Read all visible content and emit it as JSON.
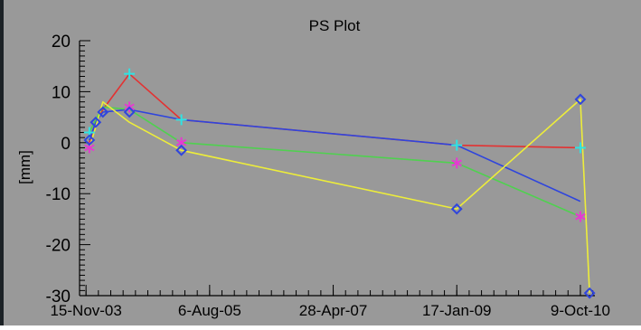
{
  "chart_data": {
    "type": "line",
    "title": "PS Plot",
    "xlabel": "",
    "ylabel": "[mm]",
    "ylim": [
      -30,
      20
    ],
    "xlim": [
      "2003-10-13",
      "2010-12-22"
    ],
    "yticks": [
      -30,
      -20,
      -10,
      0,
      10,
      20
    ],
    "xticks": [
      {
        "date": "2003-11-15",
        "label": "15-Nov-03"
      },
      {
        "date": "2005-08-06",
        "label": "6-Aug-05"
      },
      {
        "date": "2007-04-28",
        "label": "28-Apr-07"
      },
      {
        "date": "2009-01-17",
        "label": "17-Jan-09"
      },
      {
        "date": "2010-10-09",
        "label": "9-Oct-10"
      }
    ],
    "grid": false,
    "legend": "none",
    "background": "#999999",
    "series": [
      {
        "color": "#e33232",
        "marker": "none",
        "points": [
          {
            "x": "2003-12-02",
            "y": 0.0
          },
          {
            "x": "2004-01-03",
            "y": 4.0
          },
          {
            "x": "2004-02-09",
            "y": 6.5
          },
          {
            "x": "2004-06-23",
            "y": 13.5
          },
          {
            "x": "2005-03-15",
            "y": 4.5
          },
          {
            "x": "2009-01-17",
            "y": -0.5
          },
          {
            "x": "2010-10-09",
            "y": -1.0
          }
        ]
      },
      {
        "color": "#2f45dd",
        "marker": "diamond",
        "points": [
          {
            "x": "2003-12-02",
            "y": 0.5
          },
          {
            "x": "2004-01-03",
            "y": 4.0
          },
          {
            "x": "2004-02-09",
            "y": 6.0
          },
          {
            "x": "2004-06-23",
            "y": 6.5
          },
          {
            "x": "2005-03-15",
            "y": 4.5
          },
          {
            "x": "2009-01-17",
            "y": -0.5
          },
          {
            "x": "2010-10-09",
            "y": -11.5
          }
        ]
      },
      {
        "color": "#4fd14f",
        "marker": "none",
        "points": [
          {
            "x": "2003-12-02",
            "y": 2.0
          },
          {
            "x": "2004-01-03",
            "y": 4.5
          },
          {
            "x": "2004-02-09",
            "y": 7.0
          },
          {
            "x": "2004-06-23",
            "y": 6.5
          },
          {
            "x": "2005-03-15",
            "y": 0.0
          },
          {
            "x": "2009-01-17",
            "y": -4.0
          },
          {
            "x": "2010-10-09",
            "y": -14.5
          }
        ]
      },
      {
        "color": "#eded3a",
        "marker": "none",
        "points": [
          {
            "x": "2003-12-02",
            "y": -1.0
          },
          {
            "x": "2004-01-03",
            "y": 3.0
          },
          {
            "x": "2004-02-09",
            "y": 8.0
          },
          {
            "x": "2004-06-23",
            "y": 4.0
          },
          {
            "x": "2005-03-15",
            "y": -1.5
          },
          {
            "x": "2009-01-17",
            "y": -13.0
          },
          {
            "x": "2010-10-09",
            "y": 8.5
          },
          {
            "x": "2010-11-25",
            "y": -29.5
          }
        ]
      }
    ],
    "marker_points": [
      {
        "x": "2004-06-23",
        "y": 13.5,
        "marker": "plus",
        "color": "#2fe3e3"
      },
      {
        "x": "2005-03-15",
        "y": 4.5,
        "marker": "plus",
        "color": "#2fe3e3"
      },
      {
        "x": "2009-01-17",
        "y": -0.5,
        "marker": "plus",
        "color": "#2fe3e3"
      },
      {
        "x": "2010-10-09",
        "y": -1.0,
        "marker": "plus",
        "color": "#2fe3e3"
      },
      {
        "x": "2003-12-02",
        "y": 2.0,
        "marker": "plus",
        "color": "#2fe3e3"
      },
      {
        "x": "2004-06-23",
        "y": 7.0,
        "marker": "star",
        "color": "#e63ad1"
      },
      {
        "x": "2005-03-15",
        "y": 0.0,
        "marker": "star",
        "color": "#e63ad1"
      },
      {
        "x": "2009-01-17",
        "y": -4.0,
        "marker": "star",
        "color": "#e63ad1"
      },
      {
        "x": "2010-10-09",
        "y": -14.5,
        "marker": "star",
        "color": "#e63ad1"
      },
      {
        "x": "2003-12-02",
        "y": -1.0,
        "marker": "star",
        "color": "#e63ad1"
      },
      {
        "x": "2003-12-02",
        "y": 0.5,
        "marker": "diamond",
        "color": "#2f45dd"
      },
      {
        "x": "2004-01-03",
        "y": 4.0,
        "marker": "diamond",
        "color": "#2f45dd"
      },
      {
        "x": "2004-02-09",
        "y": 6.0,
        "marker": "diamond",
        "color": "#2f45dd"
      },
      {
        "x": "2004-06-23",
        "y": 6.0,
        "marker": "diamond",
        "color": "#2f45dd"
      },
      {
        "x": "2005-03-15",
        "y": -1.5,
        "marker": "diamond",
        "color": "#2f45dd"
      },
      {
        "x": "2009-01-17",
        "y": -13.0,
        "marker": "diamond",
        "color": "#2f45dd"
      },
      {
        "x": "2010-10-09",
        "y": 8.5,
        "marker": "diamond",
        "color": "#2f45dd"
      },
      {
        "x": "2010-11-25",
        "y": -29.5,
        "marker": "diamond",
        "color": "#2f45dd"
      }
    ]
  }
}
